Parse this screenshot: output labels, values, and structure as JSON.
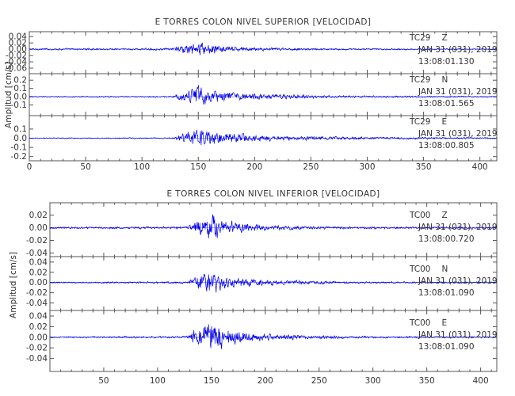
{
  "chart_data": [
    {
      "type": "line",
      "title": "E TORRES COLON NIVEL SUPERIOR [VELOCIDAD]",
      "ylabel": "Amplitud [cm/s]",
      "xlabel": "",
      "xlim": [
        0,
        415
      ],
      "x_ticks": [
        0,
        50,
        100,
        150,
        200,
        250,
        300,
        350,
        400
      ],
      "x_tick_labels": [
        "0",
        "50",
        "100",
        "150",
        "200",
        "250",
        "300",
        "350",
        "400"
      ],
      "line_color": "#0000ee",
      "traces": [
        {
          "station": "TC29",
          "component": "Z",
          "date": "JAN 31 (031), 2019",
          "time": "13:08:01.130",
          "ylim": [
            -0.07,
            0.048
          ],
          "y_ticks": [
            -0.06,
            -0.04,
            -0.02,
            0.0,
            0.02,
            0.04
          ],
          "y_tick_labels": [
            "-0.06",
            "-0.04",
            "-0.02",
            "0.00",
            "0.02",
            "0.04"
          ],
          "peak_amplitude": 0.04,
          "envelope": [
            [
              0,
              0.004
            ],
            [
              128,
              0.005
            ],
            [
              132,
              0.018
            ],
            [
              142,
              0.022
            ],
            [
              150,
              0.04
            ],
            [
              158,
              0.025
            ],
            [
              175,
              0.015
            ],
            [
              200,
              0.008
            ],
            [
              260,
              0.004
            ],
            [
              415,
              0.003
            ]
          ]
        },
        {
          "station": "TC29",
          "component": "N",
          "date": "JAN 31 (031), 2019",
          "time": "13:08:01.565",
          "ylim": [
            -0.2,
            0.25
          ],
          "y_ticks": [
            -0.1,
            0.0,
            0.1,
            0.2
          ],
          "y_tick_labels": [
            "-0.1",
            "0.0",
            "0.1",
            "0.2"
          ],
          "peak_amplitude": 0.2,
          "envelope": [
            [
              0,
              0.01
            ],
            [
              128,
              0.012
            ],
            [
              132,
              0.06
            ],
            [
              142,
              0.1
            ],
            [
              150,
              0.2
            ],
            [
              160,
              0.12
            ],
            [
              180,
              0.08
            ],
            [
              210,
              0.05
            ],
            [
              280,
              0.02
            ],
            [
              415,
              0.01
            ]
          ]
        },
        {
          "station": "TC29",
          "component": "E",
          "date": "JAN 31 (031), 2019",
          "time": "13:08:00.805",
          "ylim": [
            -0.22,
            0.22
          ],
          "y_ticks": [
            -0.2,
            -0.1,
            0.0,
            0.1
          ],
          "y_tick_labels": [
            "-0.2",
            "-0.1",
            "0.0",
            "0.1"
          ],
          "peak_amplitude": 0.15,
          "envelope": [
            [
              0,
              0.008
            ],
            [
              128,
              0.01
            ],
            [
              132,
              0.06
            ],
            [
              142,
              0.09
            ],
            [
              150,
              0.15
            ],
            [
              165,
              0.1
            ],
            [
              185,
              0.08
            ],
            [
              220,
              0.04
            ],
            [
              300,
              0.02
            ],
            [
              415,
              0.01
            ]
          ]
        }
      ]
    },
    {
      "type": "line",
      "title": "E TORRES COLON NIVEL INFERIOR [VELOCIDAD]",
      "ylabel": "Amplitud [cm/s]",
      "xlabel": "",
      "xlim": [
        0,
        415
      ],
      "x_ticks": [
        50,
        100,
        150,
        200,
        250,
        300,
        350,
        400
      ],
      "x_tick_labels": [
        "50",
        "100",
        "150",
        "200",
        "250",
        "300",
        "350",
        "400"
      ],
      "line_color": "#0000ee",
      "traces": [
        {
          "station": "TC00",
          "component": "Z",
          "date": "JAN 31 (031), 2019",
          "time": "13:08:00.720",
          "ylim": [
            -0.042,
            0.036
          ],
          "y_ticks": [
            -0.04,
            -0.02,
            0.0,
            0.02
          ],
          "y_tick_labels": [
            "-0.04",
            "-0.02",
            "0.00",
            "0.02"
          ],
          "peak_amplitude": 0.032,
          "envelope": [
            [
              0,
              0.002
            ],
            [
              128,
              0.003
            ],
            [
              132,
              0.015
            ],
            [
              142,
              0.022
            ],
            [
              150,
              0.032
            ],
            [
              160,
              0.02
            ],
            [
              175,
              0.012
            ],
            [
              200,
              0.006
            ],
            [
              260,
              0.003
            ],
            [
              415,
              0.002
            ]
          ]
        },
        {
          "station": "TC00",
          "component": "N",
          "date": "JAN 31 (031), 2019",
          "time": "13:08:01.090",
          "ylim": [
            -0.05,
            0.046
          ],
          "y_ticks": [
            -0.04,
            -0.02,
            0.0,
            0.02,
            0.04
          ],
          "y_tick_labels": [
            "-0.04",
            "-0.02",
            "0.00",
            "0.02",
            "0.04"
          ],
          "peak_amplitude": 0.035,
          "envelope": [
            [
              0,
              0.002
            ],
            [
              128,
              0.003
            ],
            [
              132,
              0.015
            ],
            [
              142,
              0.025
            ],
            [
              150,
              0.035
            ],
            [
              160,
              0.02
            ],
            [
              180,
              0.012
            ],
            [
              210,
              0.007
            ],
            [
              280,
              0.003
            ],
            [
              415,
              0.002
            ]
          ]
        },
        {
          "station": "TC00",
          "component": "E",
          "date": "JAN 31 (031), 2019",
          "time": "13:08:01.090",
          "ylim": [
            -0.06,
            0.046
          ],
          "y_ticks": [
            -0.04,
            -0.02,
            0.0,
            0.02,
            0.04
          ],
          "y_tick_labels": [
            "-0.04",
            "-0.02",
            "0.00",
            "0.02",
            "0.04"
          ],
          "peak_amplitude": 0.045,
          "envelope": [
            [
              0,
              0.002
            ],
            [
              128,
              0.003
            ],
            [
              132,
              0.018
            ],
            [
              142,
              0.028
            ],
            [
              150,
              0.045
            ],
            [
              162,
              0.025
            ],
            [
              180,
              0.014
            ],
            [
              210,
              0.008
            ],
            [
              280,
              0.003
            ],
            [
              415,
              0.002
            ]
          ]
        }
      ]
    }
  ]
}
